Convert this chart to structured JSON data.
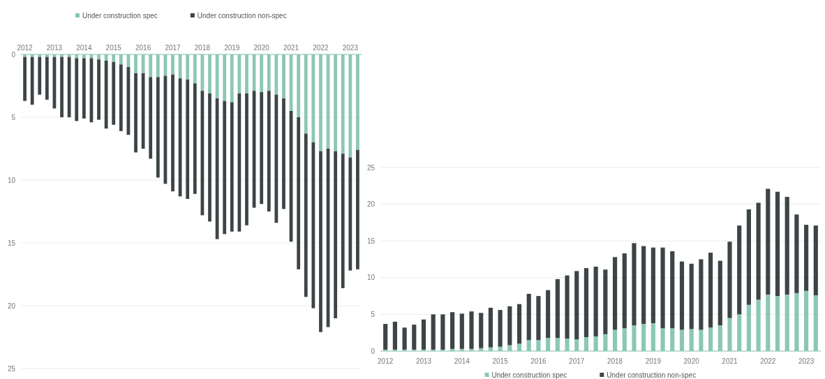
{
  "chart_data": [
    {
      "type": "bar",
      "stacked": true,
      "categories": [
        "2012",
        null,
        null,
        null,
        "2013",
        null,
        null,
        null,
        "2014",
        null,
        null,
        null,
        "2015",
        null,
        null,
        null,
        "2016",
        null,
        null,
        null,
        "2017",
        null,
        null,
        null,
        "2018",
        null,
        null,
        null,
        "2019",
        null,
        null,
        null,
        "2020",
        null,
        null,
        null,
        "2021",
        null,
        null,
        null,
        "2022",
        null,
        null,
        null,
        "2023",
        null
      ],
      "series": [
        {
          "name": "Under construction spec",
          "color": "#8cc7b5",
          "values": [
            0.2,
            0.2,
            0.2,
            0.2,
            0.2,
            0.2,
            0.2,
            0.3,
            0.3,
            0.3,
            0.4,
            0.5,
            0.6,
            0.8,
            1.0,
            1.5,
            1.5,
            1.8,
            1.8,
            1.7,
            1.6,
            1.9,
            2.0,
            2.3,
            2.9,
            3.1,
            3.5,
            3.7,
            3.8,
            3.1,
            3.1,
            2.9,
            3.0,
            2.9,
            3.2,
            3.5,
            4.5,
            5.0,
            6.3,
            7.0,
            7.7,
            7.5,
            7.7,
            7.9,
            8.2,
            7.6
          ]
        },
        {
          "name": "Under construction non-spec",
          "color": "#3d4446",
          "values": [
            3.5,
            3.8,
            3.0,
            3.4,
            4.1,
            4.8,
            4.8,
            5.0,
            4.8,
            5.1,
            4.8,
            5.4,
            5.0,
            5.3,
            5.4,
            6.3,
            6.0,
            6.5,
            8.0,
            8.6,
            9.3,
            9.4,
            9.5,
            8.8,
            9.9,
            10.2,
            11.2,
            10.6,
            10.3,
            11.0,
            10.5,
            9.3,
            8.9,
            9.6,
            10.2,
            8.8,
            10.4,
            12.1,
            13.0,
            13.2,
            14.4,
            14.2,
            13.3,
            10.7,
            9.0,
            9.5
          ]
        }
      ],
      "ylim": [
        25,
        0
      ],
      "yticks": [
        0,
        5,
        10,
        15,
        20,
        25
      ],
      "grid": "y",
      "legend": "top"
    },
    {
      "type": "bar",
      "stacked": true,
      "categories": [
        "2012",
        null,
        null,
        null,
        "2013",
        null,
        null,
        null,
        "2014",
        null,
        null,
        null,
        "2015",
        null,
        null,
        null,
        "2016",
        null,
        null,
        null,
        "2017",
        null,
        null,
        null,
        "2018",
        null,
        null,
        null,
        "2019",
        null,
        null,
        null,
        "2020",
        null,
        null,
        null,
        "2021",
        null,
        null,
        null,
        "2022",
        null,
        null,
        null,
        "2023",
        null
      ],
      "series": [
        {
          "name": "Under construction spec",
          "color": "#8cc7b5",
          "values": [
            0.2,
            0.2,
            0.2,
            0.2,
            0.2,
            0.2,
            0.2,
            0.3,
            0.3,
            0.3,
            0.4,
            0.5,
            0.6,
            0.8,
            1.0,
            1.5,
            1.5,
            1.8,
            1.8,
            1.7,
            1.6,
            1.9,
            2.0,
            2.3,
            2.9,
            3.1,
            3.5,
            3.7,
            3.8,
            3.1,
            3.1,
            2.9,
            3.0,
            2.9,
            3.2,
            3.5,
            4.5,
            5.0,
            6.3,
            7.0,
            7.7,
            7.5,
            7.7,
            7.9,
            8.2,
            7.6
          ]
        },
        {
          "name": "Under construction non-spec",
          "color": "#3d4446",
          "values": [
            3.5,
            3.8,
            3.0,
            3.4,
            4.1,
            4.8,
            4.8,
            5.0,
            4.8,
            5.1,
            4.8,
            5.4,
            5.0,
            5.3,
            5.4,
            6.3,
            6.0,
            6.5,
            8.0,
            8.6,
            9.3,
            9.4,
            9.5,
            8.8,
            9.9,
            10.2,
            11.2,
            10.6,
            10.3,
            11.0,
            10.5,
            9.3,
            8.9,
            9.6,
            10.2,
            8.8,
            10.4,
            12.1,
            13.0,
            13.2,
            14.4,
            14.2,
            13.3,
            10.7,
            9.0,
            9.5
          ]
        }
      ],
      "ylim": [
        0,
        25
      ],
      "yticks": [
        0,
        5,
        10,
        15,
        20,
        25
      ],
      "grid": "y",
      "legend": "bottom"
    }
  ]
}
